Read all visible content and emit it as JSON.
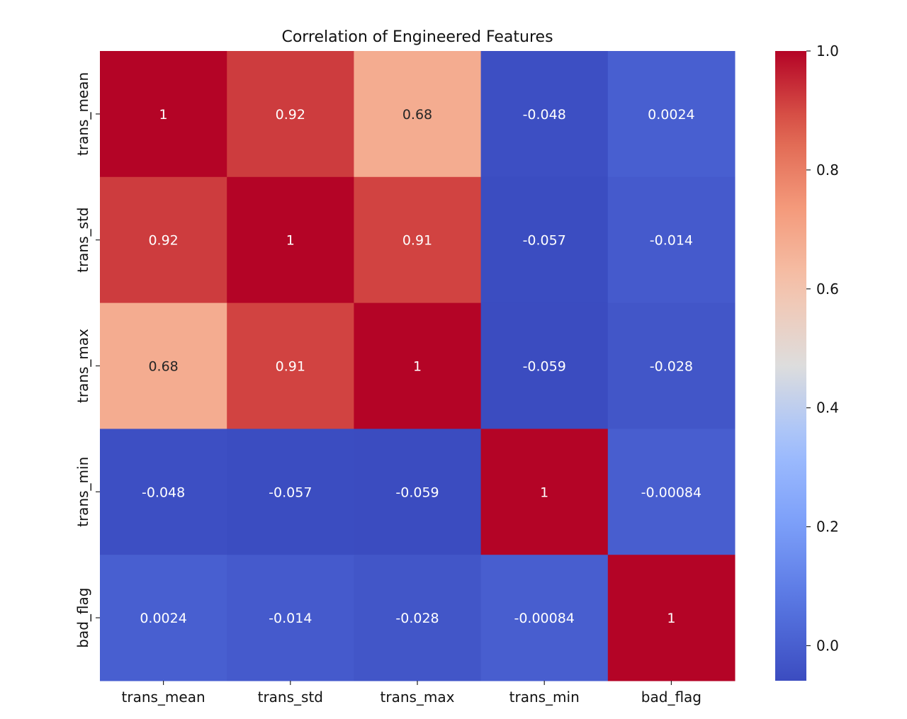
{
  "chart_data": {
    "type": "heatmap",
    "title": "Correlation of Engineered Features",
    "xlabel": "",
    "ylabel": "",
    "x_categories": [
      "trans_mean",
      "trans_std",
      "trans_max",
      "trans_min",
      "bad_flag"
    ],
    "y_categories": [
      "trans_mean",
      "trans_std",
      "trans_max",
      "trans_min",
      "bad_flag"
    ],
    "values": [
      [
        1,
        0.92,
        0.68,
        -0.048,
        0.0024
      ],
      [
        0.92,
        1,
        0.91,
        -0.057,
        -0.014
      ],
      [
        0.68,
        0.91,
        1,
        -0.059,
        -0.028
      ],
      [
        -0.048,
        -0.057,
        -0.059,
        1,
        -0.00084
      ],
      [
        0.0024,
        -0.014,
        -0.028,
        -0.00084,
        1
      ]
    ],
    "annotations": [
      [
        "1",
        "0.92",
        "0.68",
        "-0.048",
        "0.0024"
      ],
      [
        "0.92",
        "1",
        "0.91",
        "-0.057",
        "-0.014"
      ],
      [
        "0.68",
        "0.91",
        "1",
        "-0.059",
        "-0.028"
      ],
      [
        "-0.048",
        "-0.057",
        "-0.059",
        "1",
        "-0.00084"
      ],
      [
        "0.0024",
        "-0.014",
        "-0.028",
        "-0.00084",
        "1"
      ]
    ],
    "colormap": "coolwarm",
    "vmin": -0.059,
    "vmax": 1,
    "colorbar": {
      "ticks": [
        0.0,
        0.2,
        0.4,
        0.6,
        0.8,
        1.0
      ],
      "tick_labels": [
        "0.0",
        "0.2",
        "0.4",
        "0.6",
        "0.8",
        "1.0"
      ],
      "placement": "right"
    },
    "grid": false,
    "legend": "colorbar-right"
  }
}
